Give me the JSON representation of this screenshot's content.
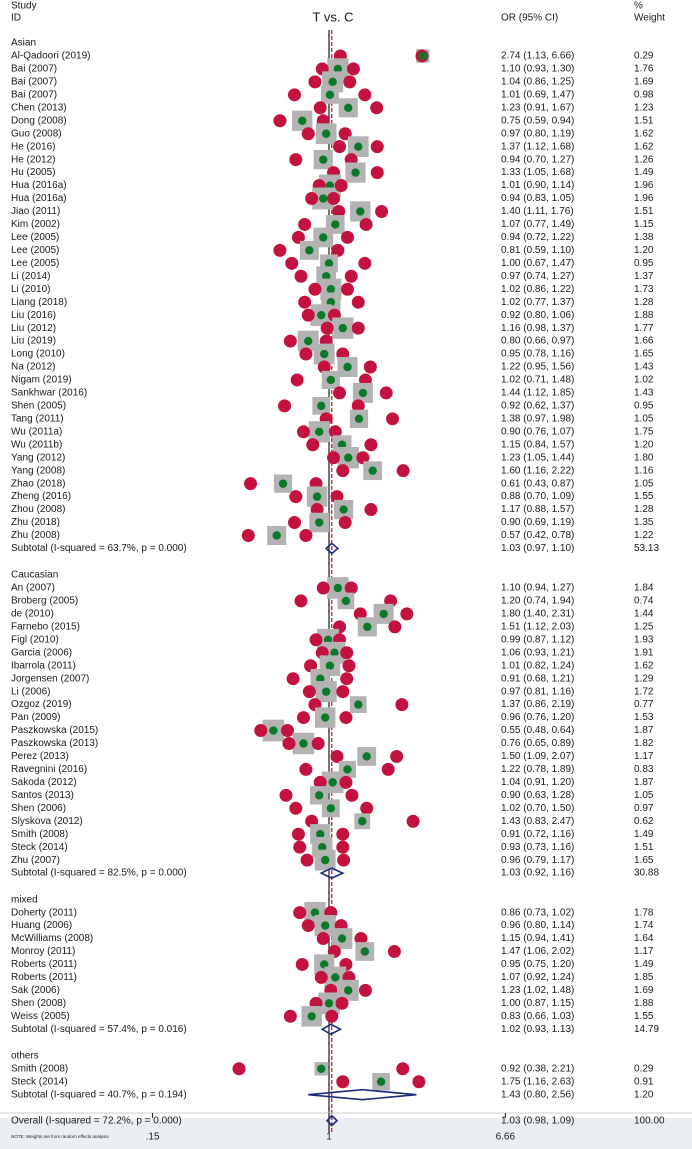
{
  "chart_data": {
    "type": "forest",
    "title": "T vs. C",
    "header": {
      "study_line1": "Study",
      "study_line2": "ID",
      "effect": "OR (95% CI)",
      "weight_line1": "%",
      "weight_line2": "Weight"
    },
    "x_scale": "log",
    "x_ticks": [
      {
        "value": 0.15,
        "label": ".15"
      },
      {
        "value": 1,
        "label": "1"
      },
      {
        "value": 6.66,
        "label": "6.66"
      }
    ],
    "overall_or": 1.03,
    "note": "NOTE: Weights are from random effects analysis",
    "groups": [
      {
        "name": "Asian",
        "studies": [
          {
            "id": "Al-Qadoori (2019)",
            "or": 2.74,
            "lo": 1.13,
            "hi": 6.66,
            "weight": 0.29,
            "ci_text": "2.74 (1.13, 6.66)",
            "weight_text": "0.29"
          },
          {
            "id": "Bai (2007)",
            "or": 1.1,
            "lo": 0.93,
            "hi": 1.3,
            "weight": 1.76,
            "ci_text": "1.10 (0.93, 1.30)",
            "weight_text": "1.76"
          },
          {
            "id": "Bai (2007)",
            "or": 1.04,
            "lo": 0.86,
            "hi": 1.25,
            "weight": 1.69,
            "ci_text": "1.04 (0.86, 1.25)",
            "weight_text": "1.69"
          },
          {
            "id": "Bai (2007)",
            "or": 1.01,
            "lo": 0.69,
            "hi": 1.47,
            "weight": 0.98,
            "ci_text": "1.01 (0.69, 1.47)",
            "weight_text": "0.98"
          },
          {
            "id": "Chen (2013)",
            "or": 1.23,
            "lo": 0.91,
            "hi": 1.67,
            "weight": 1.23,
            "ci_text": "1.23 (0.91, 1.67)",
            "weight_text": "1.23"
          },
          {
            "id": "Dong (2008)",
            "or": 0.75,
            "lo": 0.59,
            "hi": 0.94,
            "weight": 1.51,
            "ci_text": "0.75 (0.59, 0.94)",
            "weight_text": "1.51"
          },
          {
            "id": "Guo (2008)",
            "or": 0.97,
            "lo": 0.8,
            "hi": 1.19,
            "weight": 1.62,
            "ci_text": "0.97 (0.80, 1.19)",
            "weight_text": "1.62"
          },
          {
            "id": "He (2016)",
            "or": 1.37,
            "lo": 1.12,
            "hi": 1.68,
            "weight": 1.62,
            "ci_text": "1.37 (1.12, 1.68)",
            "weight_text": "1.62"
          },
          {
            "id": "He (2012)",
            "or": 0.94,
            "lo": 0.7,
            "hi": 1.27,
            "weight": 1.26,
            "ci_text": "0.94 (0.70, 1.27)",
            "weight_text": "1.26"
          },
          {
            "id": "Hu (2005)",
            "or": 1.33,
            "lo": 1.05,
            "hi": 1.68,
            "weight": 1.49,
            "ci_text": "1.33 (1.05, 1.68)",
            "weight_text": "1.49"
          },
          {
            "id": "Hua (2016a)",
            "or": 1.01,
            "lo": 0.9,
            "hi": 1.14,
            "weight": 1.96,
            "ci_text": "1.01 (0.90, 1.14)",
            "weight_text": "1.96"
          },
          {
            "id": "Hua (2016a)",
            "or": 0.94,
            "lo": 0.83,
            "hi": 1.05,
            "weight": 1.96,
            "ci_text": "0.94 (0.83, 1.05)",
            "weight_text": "1.96"
          },
          {
            "id": "Jiao (2011)",
            "or": 1.4,
            "lo": 1.11,
            "hi": 1.76,
            "weight": 1.51,
            "ci_text": "1.40 (1.11, 1.76)",
            "weight_text": "1.51"
          },
          {
            "id": "Kim (2002)",
            "or": 1.07,
            "lo": 0.77,
            "hi": 1.49,
            "weight": 1.15,
            "ci_text": "1.07 (0.77, 1.49)",
            "weight_text": "1.15"
          },
          {
            "id": "Lee (2005)",
            "or": 0.94,
            "lo": 0.72,
            "hi": 1.22,
            "weight": 1.38,
            "ci_text": "0.94 (0.72, 1.22)",
            "weight_text": "1.38"
          },
          {
            "id": "Lee (2005)",
            "or": 0.81,
            "lo": 0.59,
            "hi": 1.1,
            "weight": 1.2,
            "ci_text": "0.81 (0.59, 1.10)",
            "weight_text": "1.20"
          },
          {
            "id": "Lee (2005)",
            "or": 1.0,
            "lo": 0.67,
            "hi": 1.47,
            "weight": 0.95,
            "ci_text": "1.00 (0.67, 1.47)",
            "weight_text": "0.95"
          },
          {
            "id": "Li (2014)",
            "or": 0.97,
            "lo": 0.74,
            "hi": 1.27,
            "weight": 1.37,
            "ci_text": "0.97 (0.74, 1.27)",
            "weight_text": "1.37"
          },
          {
            "id": "Li (2010)",
            "or": 1.02,
            "lo": 0.86,
            "hi": 1.22,
            "weight": 1.73,
            "ci_text": "1.02 (0.86, 1.22)",
            "weight_text": "1.73"
          },
          {
            "id": "Liang (2018)",
            "or": 1.02,
            "lo": 0.77,
            "hi": 1.37,
            "weight": 1.28,
            "ci_text": "1.02 (0.77, 1.37)",
            "weight_text": "1.28"
          },
          {
            "id": "Liu (2016)",
            "or": 0.92,
            "lo": 0.8,
            "hi": 1.06,
            "weight": 1.88,
            "ci_text": "0.92 (0.80, 1.06)",
            "weight_text": "1.88"
          },
          {
            "id": "Liu (2012)",
            "or": 1.16,
            "lo": 0.98,
            "hi": 1.37,
            "weight": 1.77,
            "ci_text": "1.16 (0.98, 1.37)",
            "weight_text": "1.77"
          },
          {
            "id": "Liu (2019)",
            "or": 0.8,
            "lo": 0.66,
            "hi": 0.97,
            "weight": 1.66,
            "ci_text": "0.80 (0.66, 0.97)",
            "weight_text": "1.66"
          },
          {
            "id": "Long (2010)",
            "or": 0.95,
            "lo": 0.78,
            "hi": 1.16,
            "weight": 1.65,
            "ci_text": "0.95 (0.78, 1.16)",
            "weight_text": "1.65"
          },
          {
            "id": "Na (2012)",
            "or": 1.22,
            "lo": 0.95,
            "hi": 1.56,
            "weight": 1.43,
            "ci_text": "1.22 (0.95, 1.56)",
            "weight_text": "1.43"
          },
          {
            "id": "Nigam (2019)",
            "or": 1.02,
            "lo": 0.71,
            "hi": 1.48,
            "weight": 1.02,
            "ci_text": "1.02 (0.71, 1.48)",
            "weight_text": "1.02"
          },
          {
            "id": "Sankhwar (2016)",
            "or": 1.44,
            "lo": 1.12,
            "hi": 1.85,
            "weight": 1.43,
            "ci_text": "1.44 (1.12, 1.85)",
            "weight_text": "1.43"
          },
          {
            "id": "Shen (2005)",
            "or": 0.92,
            "lo": 0.62,
            "hi": 1.37,
            "weight": 0.95,
            "ci_text": "0.92 (0.62, 1.37)",
            "weight_text": "0.95"
          },
          {
            "id": "Tang (2011)",
            "or": 1.38,
            "lo": 0.97,
            "hi": 1.98,
            "weight": 1.05,
            "ci_text": "1.38 (0.97, 1.98)",
            "weight_text": "1.05"
          },
          {
            "id": "Wu (2011a)",
            "or": 0.9,
            "lo": 0.76,
            "hi": 1.07,
            "weight": 1.75,
            "ci_text": "0.90 (0.76, 1.07)",
            "weight_text": "1.75"
          },
          {
            "id": "Wu (2011b)",
            "or": 1.15,
            "lo": 0.84,
            "hi": 1.57,
            "weight": 1.2,
            "ci_text": "1.15 (0.84, 1.57)",
            "weight_text": "1.20"
          },
          {
            "id": "Yang (2012)",
            "or": 1.23,
            "lo": 1.05,
            "hi": 1.44,
            "weight": 1.8,
            "ci_text": "1.23 (1.05, 1.44)",
            "weight_text": "1.80"
          },
          {
            "id": "Yang (2008)",
            "or": 1.6,
            "lo": 1.16,
            "hi": 2.22,
            "weight": 1.16,
            "ci_text": "1.60 (1.16, 2.22)",
            "weight_text": "1.16"
          },
          {
            "id": "Zhao (2018)",
            "or": 0.61,
            "lo": 0.43,
            "hi": 0.87,
            "weight": 1.05,
            "ci_text": "0.61 (0.43, 0.87)",
            "weight_text": "1.05"
          },
          {
            "id": "Zheng (2016)",
            "or": 0.88,
            "lo": 0.7,
            "hi": 1.09,
            "weight": 1.55,
            "ci_text": "0.88 (0.70, 1.09)",
            "weight_text": "1.55"
          },
          {
            "id": "Zhou (2008)",
            "or": 1.17,
            "lo": 0.88,
            "hi": 1.57,
            "weight": 1.28,
            "ci_text": "1.17 (0.88, 1.57)",
            "weight_text": "1.28"
          },
          {
            "id": "Zhu (2018)",
            "or": 0.9,
            "lo": 0.69,
            "hi": 1.19,
            "weight": 1.35,
            "ci_text": "0.90 (0.69, 1.19)",
            "weight_text": "1.35"
          },
          {
            "id": "Zhu (2008)",
            "or": 0.57,
            "lo": 0.42,
            "hi": 0.78,
            "weight": 1.22,
            "ci_text": "0.57 (0.42, 0.78)",
            "weight_text": "1.22"
          }
        ],
        "subtotal": {
          "label": "Subtotal  (I-squared = 63.7%, p = 0.000)",
          "or": 1.03,
          "lo": 0.97,
          "hi": 1.1,
          "ci_text": "1.03 (0.97, 1.10)",
          "weight_text": "53.13"
        }
      },
      {
        "name": "Caucasian",
        "studies": [
          {
            "id": "An (2007)",
            "or": 1.1,
            "lo": 0.94,
            "hi": 1.27,
            "weight": 1.84,
            "ci_text": "1.10 (0.94, 1.27)",
            "weight_text": "1.84"
          },
          {
            "id": "Broberg (2005)",
            "or": 1.2,
            "lo": 0.74,
            "hi": 1.94,
            "weight": 0.74,
            "ci_text": "1.20 (0.74, 1.94)",
            "weight_text": "0.74"
          },
          {
            "id": "de (2010)",
            "or": 1.8,
            "lo": 1.4,
            "hi": 2.31,
            "weight": 1.44,
            "ci_text": "1.80 (1.40, 2.31)",
            "weight_text": "1.44"
          },
          {
            "id": "Farnebo (2015)",
            "or": 1.51,
            "lo": 1.12,
            "hi": 2.03,
            "weight": 1.25,
            "ci_text": "1.51 (1.12, 2.03)",
            "weight_text": "1.25"
          },
          {
            "id": "Figl (2010)",
            "or": 0.99,
            "lo": 0.87,
            "hi": 1.12,
            "weight": 1.93,
            "ci_text": "0.99 (0.87, 1.12)",
            "weight_text": "1.93"
          },
          {
            "id": "Garcia (2006)",
            "or": 1.06,
            "lo": 0.93,
            "hi": 1.21,
            "weight": 1.91,
            "ci_text": "1.06 (0.93, 1.21)",
            "weight_text": "1.91"
          },
          {
            "id": "Ibarrola (2011)",
            "or": 1.01,
            "lo": 0.82,
            "hi": 1.24,
            "weight": 1.62,
            "ci_text": "1.01 (0.82, 1.24)",
            "weight_text": "1.62"
          },
          {
            "id": "Jorgensen (2007)",
            "or": 0.91,
            "lo": 0.68,
            "hi": 1.21,
            "weight": 1.29,
            "ci_text": "0.91 (0.68, 1.21)",
            "weight_text": "1.29"
          },
          {
            "id": "Li (2006)",
            "or": 0.97,
            "lo": 0.81,
            "hi": 1.16,
            "weight": 1.72,
            "ci_text": "0.97 (0.81, 1.16)",
            "weight_text": "1.72"
          },
          {
            "id": "Ozgoz (2019)",
            "or": 1.37,
            "lo": 0.86,
            "hi": 2.19,
            "weight": 0.77,
            "ci_text": "1.37 (0.86, 2.19)",
            "weight_text": "0.77"
          },
          {
            "id": "Pan (2009)",
            "or": 0.96,
            "lo": 0.76,
            "hi": 1.2,
            "weight": 1.53,
            "ci_text": "0.96 (0.76, 1.20)",
            "weight_text": "1.53"
          },
          {
            "id": "Paszkowska (2015)",
            "or": 0.55,
            "lo": 0.48,
            "hi": 0.64,
            "weight": 1.87,
            "ci_text": "0.55 (0.48, 0.64)",
            "weight_text": "1.87"
          },
          {
            "id": "Paszkowska (2013)",
            "or": 0.76,
            "lo": 0.65,
            "hi": 0.89,
            "weight": 1.82,
            "ci_text": "0.76 (0.65, 0.89)",
            "weight_text": "1.82"
          },
          {
            "id": "Perez (2013)",
            "or": 1.5,
            "lo": 1.09,
            "hi": 2.07,
            "weight": 1.17,
            "ci_text": "1.50 (1.09, 2.07)",
            "weight_text": "1.17"
          },
          {
            "id": "Ravegnini (2016)",
            "or": 1.22,
            "lo": 0.78,
            "hi": 1.89,
            "weight": 0.83,
            "ci_text": "1.22 (0.78, 1.89)",
            "weight_text": "0.83"
          },
          {
            "id": "Sakoda (2012)",
            "or": 1.04,
            "lo": 0.91,
            "hi": 1.2,
            "weight": 1.87,
            "ci_text": "1.04 (0.91, 1.20)",
            "weight_text": "1.87"
          },
          {
            "id": "Santos (2013)",
            "or": 0.9,
            "lo": 0.63,
            "hi": 1.28,
            "weight": 1.05,
            "ci_text": "0.90 (0.63, 1.28)",
            "weight_text": "1.05"
          },
          {
            "id": "Shen (2006)",
            "or": 1.02,
            "lo": 0.7,
            "hi": 1.5,
            "weight": 0.97,
            "ci_text": "1.02 (0.70, 1.50)",
            "weight_text": "0.97"
          },
          {
            "id": "Slyskova (2012)",
            "or": 1.43,
            "lo": 0.83,
            "hi": 2.47,
            "weight": 0.62,
            "ci_text": "1.43 (0.83, 2.47)",
            "weight_text": "0.62"
          },
          {
            "id": "Smith (2008)",
            "or": 0.91,
            "lo": 0.72,
            "hi": 1.16,
            "weight": 1.49,
            "ci_text": "0.91 (0.72, 1.16)",
            "weight_text": "1.49"
          },
          {
            "id": "Steck (2014)",
            "or": 0.93,
            "lo": 0.73,
            "hi": 1.16,
            "weight": 1.51,
            "ci_text": "0.93 (0.73, 1.16)",
            "weight_text": "1.51"
          },
          {
            "id": "Zhu (2007)",
            "or": 0.96,
            "lo": 0.79,
            "hi": 1.17,
            "weight": 1.65,
            "ci_text": "0.96 (0.79, 1.17)",
            "weight_text": "1.65"
          }
        ],
        "subtotal": {
          "label": "Subtotal  (I-squared = 82.5%, p = 0.000)",
          "or": 1.03,
          "lo": 0.92,
          "hi": 1.16,
          "ci_text": "1.03 (0.92, 1.16)",
          "weight_text": "30.88"
        }
      },
      {
        "name": "mixed",
        "studies": [
          {
            "id": "Doherty (2011)",
            "or": 0.86,
            "lo": 0.73,
            "hi": 1.02,
            "weight": 1.78,
            "ci_text": "0.86 (0.73, 1.02)",
            "weight_text": "1.78"
          },
          {
            "id": "Huang (2006)",
            "or": 0.96,
            "lo": 0.8,
            "hi": 1.14,
            "weight": 1.74,
            "ci_text": "0.96 (0.80, 1.14)",
            "weight_text": "1.74"
          },
          {
            "id": "McWilliams (2008)",
            "or": 1.15,
            "lo": 0.94,
            "hi": 1.41,
            "weight": 1.64,
            "ci_text": "1.15 (0.94, 1.41)",
            "weight_text": "1.64"
          },
          {
            "id": "Monroy (2011)",
            "or": 1.47,
            "lo": 1.06,
            "hi": 2.02,
            "weight": 1.17,
            "ci_text": "1.47 (1.06, 2.02)",
            "weight_text": "1.17"
          },
          {
            "id": "Roberts (2011)",
            "or": 0.95,
            "lo": 0.75,
            "hi": 1.2,
            "weight": 1.49,
            "ci_text": "0.95 (0.75, 1.20)",
            "weight_text": "1.49"
          },
          {
            "id": "Roberts (2011)",
            "or": 1.07,
            "lo": 0.92,
            "hi": 1.24,
            "weight": 1.85,
            "ci_text": "1.07 (0.92, 1.24)",
            "weight_text": "1.85"
          },
          {
            "id": "Sak (2006)",
            "or": 1.23,
            "lo": 1.02,
            "hi": 1.48,
            "weight": 1.69,
            "ci_text": "1.23 (1.02, 1.48)",
            "weight_text": "1.69"
          },
          {
            "id": "Shen (2008)",
            "or": 1.0,
            "lo": 0.87,
            "hi": 1.15,
            "weight": 1.88,
            "ci_text": "1.00 (0.87, 1.15)",
            "weight_text": "1.88"
          },
          {
            "id": "Weiss (2005)",
            "or": 0.83,
            "lo": 0.66,
            "hi": 1.03,
            "weight": 1.55,
            "ci_text": "0.83 (0.66, 1.03)",
            "weight_text": "1.55"
          }
        ],
        "subtotal": {
          "label": "Subtotal  (I-squared = 57.4%, p = 0.016)",
          "or": 1.02,
          "lo": 0.93,
          "hi": 1.13,
          "ci_text": "1.02 (0.93, 1.13)",
          "weight_text": "14.79"
        }
      },
      {
        "name": "others",
        "studies": [
          {
            "id": "Smith (2008)",
            "or": 0.92,
            "lo": 0.38,
            "hi": 2.21,
            "weight": 0.29,
            "ci_text": "0.92 (0.38, 2.21)",
            "weight_text": "0.29"
          },
          {
            "id": "Steck (2014)",
            "or": 1.75,
            "lo": 1.16,
            "hi": 2.63,
            "weight": 0.91,
            "ci_text": "1.75 (1.16, 2.63)",
            "weight_text": "0.91"
          }
        ],
        "subtotal": {
          "label": "Subtotal  (I-squared = 40.7%, p = 0.194)",
          "or": 1.43,
          "lo": 0.8,
          "hi": 2.56,
          "ci_text": "1.43 (0.80, 2.56)",
          "weight_text": "1.20"
        }
      }
    ],
    "overall": {
      "label": "Overall  (I-squared = 72.2%, p = 0.000)",
      "or": 1.03,
      "lo": 0.98,
      "hi": 1.09,
      "ci_text": "1.03 (0.98, 1.09)",
      "weight_text": "100.00"
    },
    "colors": {
      "point": "#0a7a2a",
      "weight_box": "#b3b3b3",
      "ci_marker": "#c41240",
      "diamond": "#1e2a7a",
      "reference_line": "#1a1a1a",
      "overall_line": "#b01818",
      "text": "#1a1a1a",
      "bottom_band": "#ebeff4"
    }
  }
}
